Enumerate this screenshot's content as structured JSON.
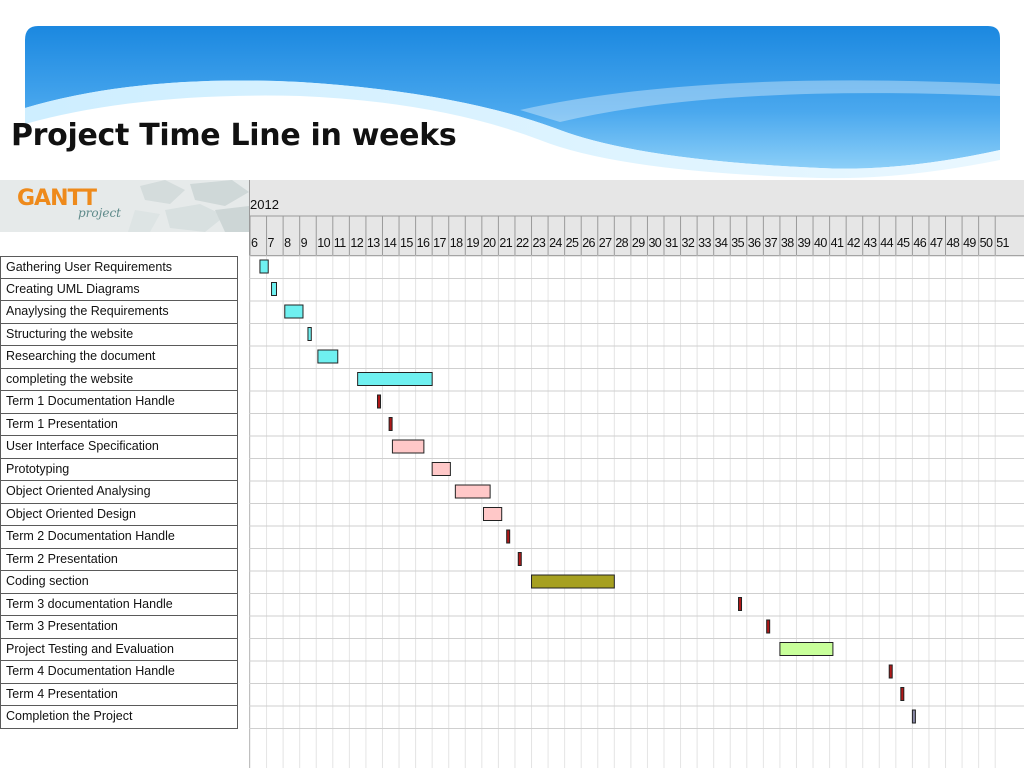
{
  "slide": {
    "title": "Project Time Line in weeks"
  },
  "logo": {
    "text": "GANTT",
    "sub": "project"
  },
  "chart_data": {
    "type": "gantt",
    "year": "2012",
    "weeks": [
      6,
      7,
      8,
      9,
      10,
      11,
      12,
      13,
      14,
      15,
      16,
      17,
      18,
      19,
      20,
      21,
      22,
      23,
      24,
      25,
      26,
      27,
      28,
      29,
      30,
      31,
      32,
      33,
      34,
      35,
      36,
      37,
      38,
      39,
      40,
      41,
      42,
      43,
      44,
      45,
      46,
      47,
      48,
      49,
      50,
      51
    ],
    "tasks": [
      {
        "name": "Gathering User Requirements",
        "start": 6.6,
        "end": 7.1,
        "color": "#6ff0f0"
      },
      {
        "name": "Creating UML Diagrams",
        "start": 7.3,
        "end": 7.6,
        "color": "#6ff0f0"
      },
      {
        "name": "Anaylysing the Requirements",
        "start": 8.1,
        "end": 9.2,
        "color": "#6ff0f0"
      },
      {
        "name": "Structuring the website",
        "start": 9.5,
        "end": 9.7,
        "color": "#6ff0f0"
      },
      {
        "name": "Researching the document",
        "start": 10.1,
        "end": 11.3,
        "color": "#6ff0f0"
      },
      {
        "name": "completing the website",
        "start": 12.5,
        "end": 17.0,
        "color": "#6ff0f0"
      },
      {
        "name": "Term 1 Documentation Handle",
        "start": 13.7,
        "end": 13.8,
        "color": "#b01818"
      },
      {
        "name": "Term 1 Presentation",
        "start": 14.4,
        "end": 14.5,
        "color": "#b01818"
      },
      {
        "name": "User Interface Specification",
        "start": 14.6,
        "end": 16.5,
        "color": "#ffc8c8"
      },
      {
        "name": "Prototyping",
        "start": 17.0,
        "end": 18.1,
        "color": "#ffc8c8"
      },
      {
        "name": "Object Oriented Analysing",
        "start": 18.4,
        "end": 20.5,
        "color": "#ffc8c8"
      },
      {
        "name": "Object Oriented Design",
        "start": 20.1,
        "end": 21.2,
        "color": "#ffc8c8"
      },
      {
        "name": "Term 2 Documentation Handle",
        "start": 21.5,
        "end": 21.6,
        "color": "#b01818"
      },
      {
        "name": "Term 2 Presentation",
        "start": 22.2,
        "end": 22.3,
        "color": "#b01818"
      },
      {
        "name": "Coding section",
        "start": 23.0,
        "end": 28.0,
        "color": "#a6a020"
      },
      {
        "name": "Term 3 documentation Handle",
        "start": 35.5,
        "end": 35.6,
        "color": "#b01818"
      },
      {
        "name": "Term 3 Presentation",
        "start": 37.2,
        "end": 37.3,
        "color": "#b01818"
      },
      {
        "name": "Project Testing and Evaluation",
        "start": 38.0,
        "end": 41.2,
        "color": "#c8ff9a"
      },
      {
        "name": "Term 4 Documentation Handle",
        "start": 44.6,
        "end": 44.7,
        "color": "#b01818"
      },
      {
        "name": "Term 4 Presentation",
        "start": 45.3,
        "end": 45.4,
        "color": "#b01818"
      },
      {
        "name": "Completion the Project",
        "start": 46.0,
        "end": 46.1,
        "color": "#8a8aa8"
      }
    ]
  }
}
